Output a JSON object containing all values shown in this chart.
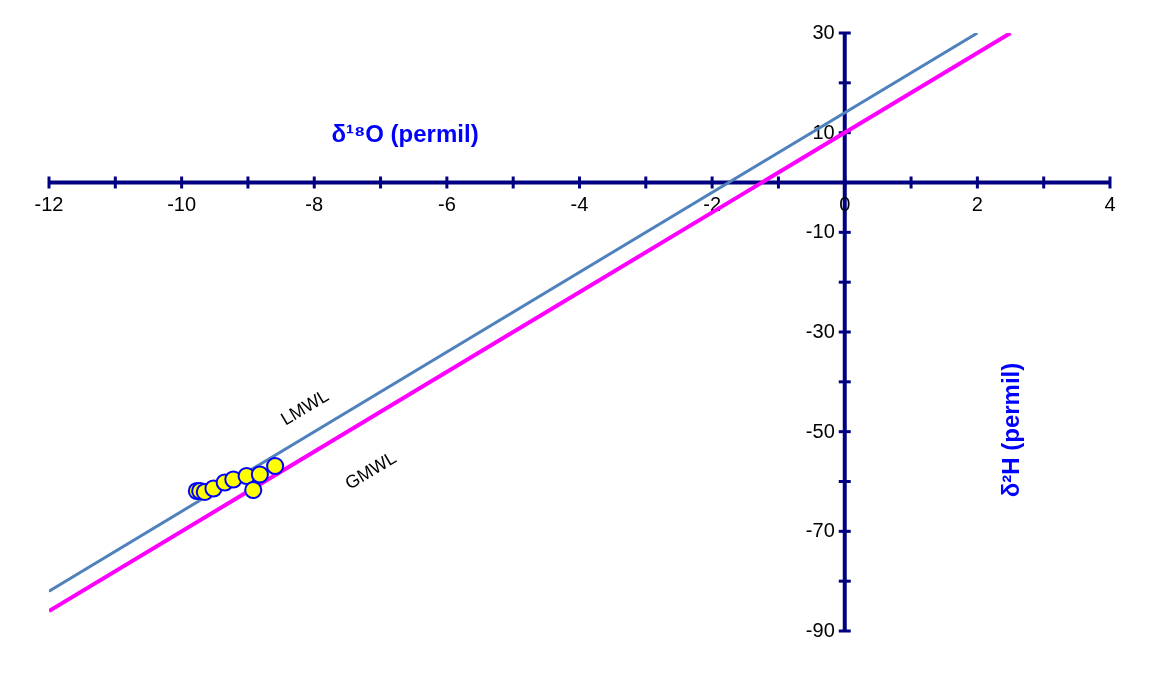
{
  "chart_data": {
    "type": "scatter",
    "xlabel": "δ¹⁸O (permil)",
    "ylabel": "δ²H (permil)",
    "xlim": [
      -12,
      4
    ],
    "ylim": [
      -90,
      30
    ],
    "xticks": [
      -12,
      {
        "value": -11,
        "label": null
      },
      -10,
      {
        "value": -9,
        "label": null
      },
      -8,
      {
        "value": -7,
        "label": null
      },
      -6,
      {
        "value": -5,
        "label": null
      },
      -4,
      {
        "value": -3,
        "label": null
      },
      -2,
      {
        "value": -1,
        "label": null
      },
      0,
      {
        "value": 1,
        "label": null
      },
      2,
      {
        "value": 3,
        "label": null
      },
      4
    ],
    "yticks": [
      -90,
      {
        "value": -80,
        "label": null
      },
      -70,
      {
        "value": -60,
        "label": null
      },
      -50,
      {
        "value": -40,
        "label": null
      },
      -30,
      {
        "value": -20,
        "label": null
      },
      -10,
      {
        "value": 0,
        "label": null
      },
      10,
      {
        "value": 20,
        "label": null
      },
      30
    ],
    "grid": false,
    "series": [
      {
        "type": "line",
        "name": "LMWL",
        "color": "#4f81bd",
        "x": [
          -12,
          2.0
        ],
        "values": [
          -82,
          30
        ],
        "marker": "none"
      },
      {
        "type": "line",
        "name": "GMWL",
        "color": "#ff00ff",
        "x": [
          -12,
          2.5
        ],
        "values": [
          -86,
          30
        ],
        "marker": "none"
      },
      {
        "color": "#ffff00",
        "marker": "circle",
        "x": [
          -9.77,
          -9.72,
          -9.65,
          -9.52,
          -9.35,
          -9.22,
          -9.02,
          -8.82,
          -8.59,
          -8.92
        ],
        "values": [
          -61.9,
          -61.9,
          -62.1,
          -61.4,
          -60.2,
          -59.6,
          -58.9,
          -58.6,
          -56.9,
          -61.7
        ]
      }
    ]
  }
}
